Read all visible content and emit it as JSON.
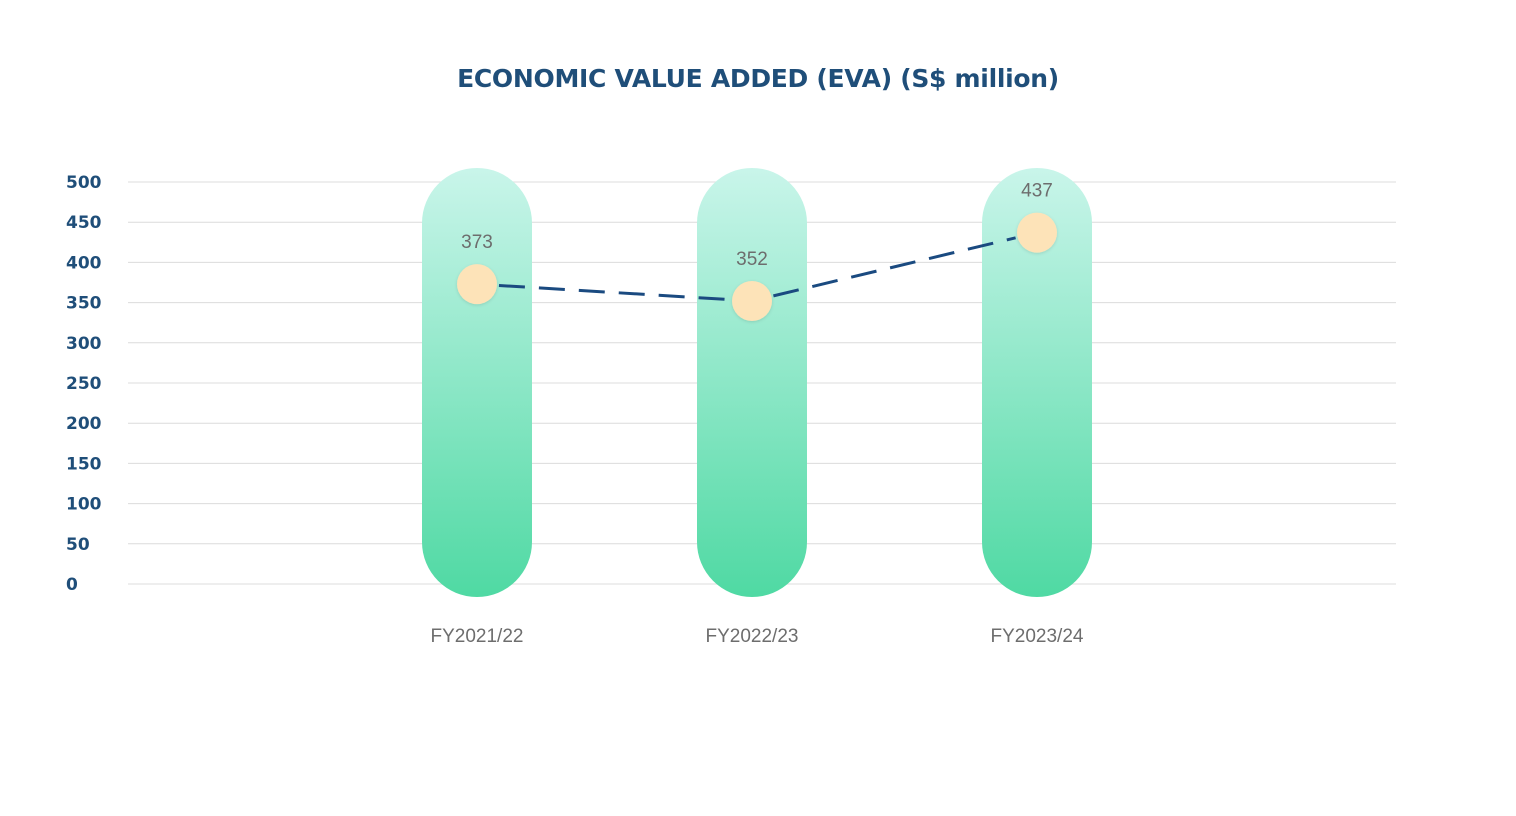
{
  "chart_data": {
    "type": "line",
    "title": "ECONOMIC VALUE ADDED (EVA) (S$ million)",
    "categories": [
      "FY2021/22",
      "FY2022/23",
      "FY2023/24"
    ],
    "series": [
      {
        "values": [
          373,
          352,
          437
        ],
        "data_labels": [
          "373",
          "352",
          "437"
        ]
      }
    ],
    "y_ticks": [
      "500",
      "450",
      "400",
      "350",
      "300",
      "250",
      "200",
      "150",
      "100",
      "50",
      "0"
    ],
    "ylim": [
      0,
      500
    ],
    "grid": true,
    "line_style": "dashed",
    "background_bars": true
  },
  "colors": {
    "title": "#1f4e79",
    "y_tick": "#1f4e79",
    "x_tick": "#6d6d6d",
    "data_label": "#6d6d6d",
    "grid": "#dcdcdc",
    "line": "#1a4a80",
    "marker": "#fde3b8",
    "bar_top": "#c9f5ea",
    "bar_bottom": "#4fd9a3"
  }
}
